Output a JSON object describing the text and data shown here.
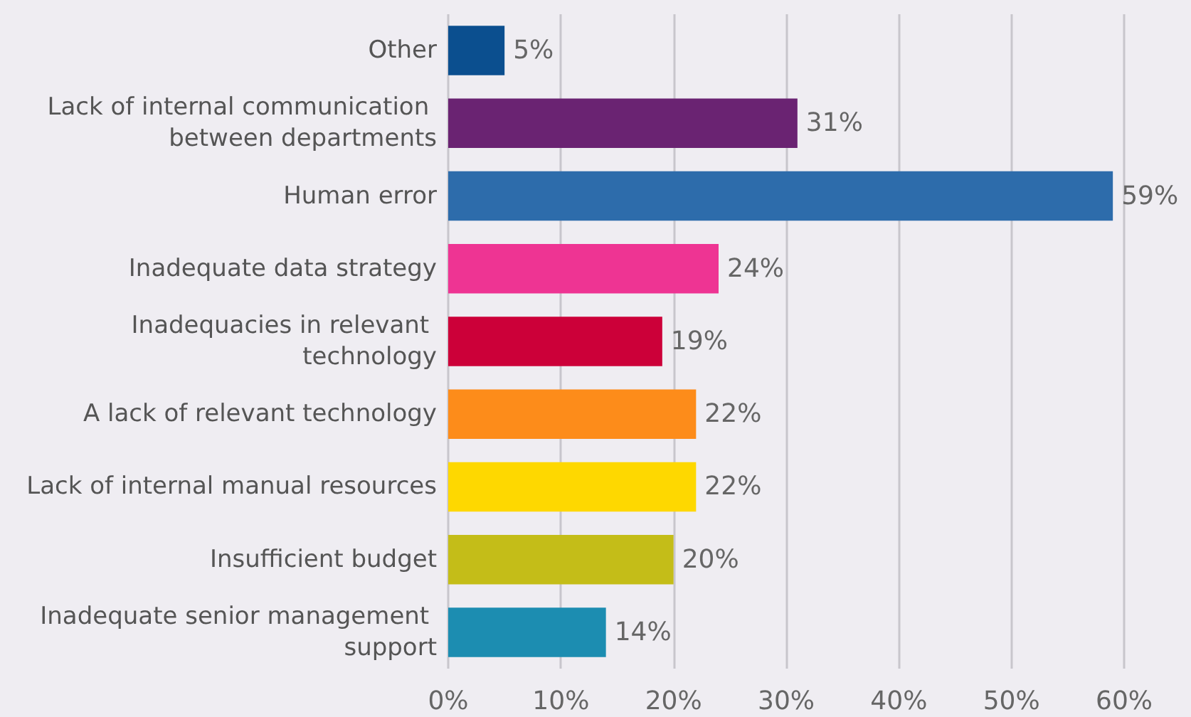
{
  "chart_data": {
    "type": "bar",
    "orientation": "horizontal",
    "categories": [
      "Other",
      "Lack of internal communication between departments",
      "Human error",
      "Inadequate data strategy",
      "Inadequacies in relevant technology",
      "A lack of relevant technology",
      "Lack of internal manual resources",
      "Insufficient budget",
      "Inadequate senior management support"
    ],
    "values": [
      5,
      31,
      59,
      24,
      19,
      22,
      22,
      20,
      14
    ],
    "colors": [
      "#0b4f8f",
      "#6a2372",
      "#2d6cab",
      "#ee3493",
      "#cc0039",
      "#fd8c1a",
      "#fed800",
      "#c4bd18",
      "#1c8db1"
    ],
    "value_labels": [
      "5%",
      "31%",
      "59%",
      "24%",
      "19%",
      "22%",
      "22%",
      "20%",
      "14%"
    ],
    "xlim": [
      0,
      60
    ],
    "xticks": [
      {
        "value": 0,
        "label": "0%"
      },
      {
        "value": 10,
        "label": "10%"
      },
      {
        "value": 20,
        "label": "20%"
      },
      {
        "value": 30,
        "label": "30%"
      },
      {
        "value": 40,
        "label": "40%"
      },
      {
        "value": 50,
        "label": "50%"
      },
      {
        "value": 60,
        "label": "60%"
      }
    ],
    "grid": "x"
  }
}
